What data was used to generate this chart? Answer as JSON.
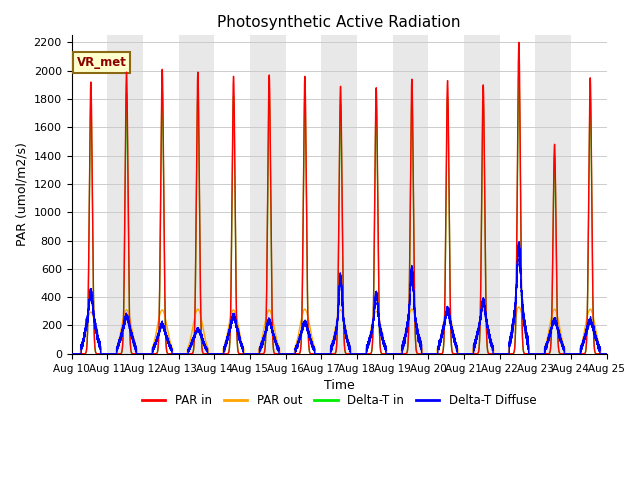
{
  "title": "Photosynthetic Active Radiation",
  "xlabel": "Time",
  "ylabel": "PAR (umol/m2/s)",
  "ylim": [
    0,
    2250
  ],
  "yticks": [
    0,
    200,
    400,
    600,
    800,
    1000,
    1200,
    1400,
    1600,
    1800,
    2000,
    2200
  ],
  "legend_labels": [
    "PAR in",
    "PAR out",
    "Delta-T in",
    "Delta-T Diffuse"
  ],
  "colors": {
    "PAR_in": "#ff0000",
    "PAR_out": "#ffa500",
    "Delta_T_in": "#00ee00",
    "Delta_T_Diffuse": "#0000ff"
  },
  "annotation_text": "VR_met",
  "days": [
    "Aug 10",
    "Aug 11",
    "Aug 12",
    "Aug 13",
    "Aug 14",
    "Aug 15",
    "Aug 16",
    "Aug 17",
    "Aug 18",
    "Aug 19",
    "Aug 20",
    "Aug 21",
    "Aug 22",
    "Aug 23",
    "Aug 24",
    "Aug 25"
  ],
  "par_in_peaks": [
    1920,
    1990,
    2010,
    1990,
    1960,
    1970,
    1960,
    1890,
    1880,
    1940,
    1930,
    1900,
    2200,
    1480,
    1950
  ],
  "par_out_peaks": [
    295,
    310,
    310,
    315,
    310,
    310,
    315,
    310,
    300,
    315,
    305,
    310,
    330,
    315,
    315
  ],
  "delta_t_in_peaks": [
    1780,
    1840,
    1860,
    1840,
    1820,
    1830,
    1830,
    1760,
    1760,
    1800,
    1810,
    1790,
    2000,
    1400,
    1820
  ],
  "delta_t_diffuse_peaks": [
    420,
    235,
    185,
    150,
    240,
    215,
    195,
    585,
    430,
    620,
    285,
    355,
    790,
    205,
    200
  ],
  "delta_t_diffuse_flat": [
    250,
    190,
    150,
    130,
    190,
    165,
    160,
    200,
    200,
    250,
    210,
    230,
    350,
    180,
    180
  ],
  "band_colors": [
    "#ffffff",
    "#e8e8e8"
  ]
}
